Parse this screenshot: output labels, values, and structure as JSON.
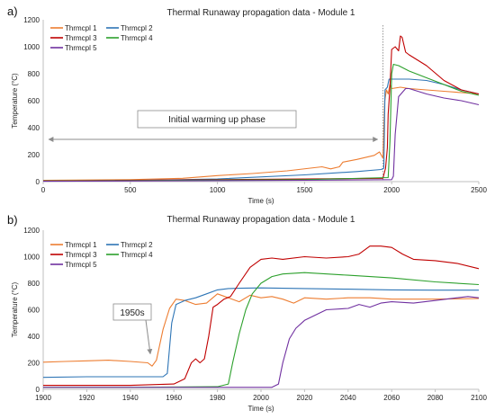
{
  "chart_data": [
    {
      "panel_label": "a)",
      "type": "line",
      "title": "Thermal Runaway propagation data  - Module 1",
      "xlabel": "Time (s)",
      "ylabel": "Temperature (°C)",
      "xlim": [
        0,
        2500
      ],
      "ylim": [
        0,
        1200
      ],
      "x_ticks": [
        0,
        500,
        1000,
        1500,
        2000,
        2500
      ],
      "y_ticks": [
        0,
        200,
        400,
        600,
        800,
        1000,
        1200
      ],
      "grid": false,
      "legend_position": "top-left",
      "annotation": {
        "text": "Initial warming up phase",
        "arrow_from_x": 0,
        "arrow_to_x": 1930,
        "arrow_y": 220
      },
      "vline_x": 1950,
      "series": [
        {
          "name": "Thrmcpl 1",
          "color": "#ed7d31",
          "points": [
            [
              0,
              10
            ],
            [
              500,
              15
            ],
            [
              800,
              25
            ],
            [
              1000,
              45
            ],
            [
              1200,
              60
            ],
            [
              1400,
              80
            ],
            [
              1600,
              110
            ],
            [
              1650,
              95
            ],
            [
              1700,
              110
            ],
            [
              1720,
              145
            ],
            [
              1800,
              165
            ],
            [
              1900,
              195
            ],
            [
              1930,
              220
            ],
            [
              1950,
              175
            ],
            [
              1960,
              600
            ],
            [
              1970,
              680
            ],
            [
              1980,
              650
            ],
            [
              1990,
              720
            ],
            [
              2000,
              690
            ],
            [
              2050,
              700
            ],
            [
              2100,
              690
            ],
            [
              2200,
              680
            ],
            [
              2300,
              670
            ],
            [
              2400,
              660
            ],
            [
              2500,
              650
            ]
          ]
        },
        {
          "name": "Thrmcpl 2",
          "color": "#2e75b6",
          "points": [
            [
              0,
              5
            ],
            [
              500,
              8
            ],
            [
              1000,
              20
            ],
            [
              1500,
              50
            ],
            [
              1800,
              75
            ],
            [
              1940,
              90
            ],
            [
              1955,
              100
            ],
            [
              1962,
              680
            ],
            [
              1975,
              700
            ],
            [
              1985,
              760
            ],
            [
              2000,
              760
            ],
            [
              2100,
              760
            ],
            [
              2200,
              750
            ],
            [
              2300,
              720
            ],
            [
              2400,
              680
            ],
            [
              2500,
              650
            ]
          ]
        },
        {
          "name": "Thrmcpl 3",
          "color": "#c00000",
          "points": [
            [
              0,
              5
            ],
            [
              1500,
              20
            ],
            [
              1950,
              25
            ],
            [
              1965,
              100
            ],
            [
              1975,
              250
            ],
            [
              1980,
              500
            ],
            [
              1990,
              700
            ],
            [
              2000,
              980
            ],
            [
              2020,
              1000
            ],
            [
              2040,
              970
            ],
            [
              2050,
              1080
            ],
            [
              2060,
              1070
            ],
            [
              2080,
              960
            ],
            [
              2100,
              940
            ],
            [
              2200,
              860
            ],
            [
              2300,
              750
            ],
            [
              2400,
              680
            ],
            [
              2500,
              650
            ]
          ]
        },
        {
          "name": "Thrmcpl 4",
          "color": "#2ca02c",
          "points": [
            [
              0,
              5
            ],
            [
              1500,
              15
            ],
            [
              1980,
              30
            ],
            [
              1990,
              300
            ],
            [
              2000,
              800
            ],
            [
              2010,
              870
            ],
            [
              2040,
              860
            ],
            [
              2100,
              820
            ],
            [
              2200,
              770
            ],
            [
              2300,
              720
            ],
            [
              2400,
              670
            ],
            [
              2500,
              640
            ]
          ]
        },
        {
          "name": "Thrmcpl 5",
          "color": "#7030a0",
          "points": [
            [
              0,
              3
            ],
            [
              1500,
              10
            ],
            [
              2000,
              15
            ],
            [
              2010,
              40
            ],
            [
              2020,
              350
            ],
            [
              2040,
              630
            ],
            [
              2060,
              660
            ],
            [
              2080,
              690
            ],
            [
              2100,
              690
            ],
            [
              2200,
              650
            ],
            [
              2300,
              620
            ],
            [
              2400,
              600
            ],
            [
              2500,
              570
            ]
          ]
        }
      ]
    },
    {
      "panel_label": "b)",
      "type": "line",
      "title": "Thermal Runaway propagation data  - Module 1",
      "xlabel": "Time (s)",
      "ylabel": "Temperature (°C)",
      "xlim": [
        1900,
        2100
      ],
      "ylim": [
        0,
        1200
      ],
      "x_ticks": [
        1900,
        1920,
        1940,
        1960,
        1980,
        2000,
        2020,
        2040,
        2060,
        2080,
        2100
      ],
      "y_ticks": [
        0,
        200,
        400,
        600,
        800,
        1000,
        1200
      ],
      "grid": false,
      "legend_position": "top-left",
      "annotation": {
        "text": "1950s",
        "arrow_to_x": 1950,
        "arrow_to_y": 240
      },
      "series": [
        {
          "name": "Thrmcpl 1",
          "color": "#ed7d31",
          "points": [
            [
              1900,
              205
            ],
            [
              1910,
              210
            ],
            [
              1920,
              215
            ],
            [
              1930,
              220
            ],
            [
              1940,
              210
            ],
            [
              1948,
              200
            ],
            [
              1950,
              175
            ],
            [
              1952,
              220
            ],
            [
              1955,
              450
            ],
            [
              1958,
              610
            ],
            [
              1961,
              680
            ],
            [
              1965,
              670
            ],
            [
              1970,
              640
            ],
            [
              1975,
              650
            ],
            [
              1980,
              720
            ],
            [
              1985,
              690
            ],
            [
              1990,
              660
            ],
            [
              1995,
              710
            ],
            [
              2000,
              690
            ],
            [
              2005,
              700
            ],
            [
              2010,
              680
            ],
            [
              2015,
              650
            ],
            [
              2020,
              690
            ],
            [
              2030,
              680
            ],
            [
              2040,
              690
            ],
            [
              2050,
              690
            ],
            [
              2060,
              680
            ],
            [
              2080,
              680
            ],
            [
              2100,
              685
            ]
          ]
        },
        {
          "name": "Thrmcpl 2",
          "color": "#2e75b6",
          "points": [
            [
              1900,
              90
            ],
            [
              1920,
              95
            ],
            [
              1940,
              95
            ],
            [
              1955,
              95
            ],
            [
              1957,
              120
            ],
            [
              1959,
              500
            ],
            [
              1961,
              640
            ],
            [
              1965,
              670
            ],
            [
              1970,
              690
            ],
            [
              1975,
              720
            ],
            [
              1980,
              750
            ],
            [
              1985,
              760
            ],
            [
              1990,
              762
            ],
            [
              2000,
              765
            ],
            [
              2020,
              760
            ],
            [
              2040,
              755
            ],
            [
              2060,
              750
            ],
            [
              2080,
              748
            ],
            [
              2100,
              748
            ]
          ]
        },
        {
          "name": "Thrmcpl 3",
          "color": "#c00000",
          "points": [
            [
              1900,
              30
            ],
            [
              1940,
              30
            ],
            [
              1960,
              40
            ],
            [
              1965,
              80
            ],
            [
              1968,
              200
            ],
            [
              1970,
              230
            ],
            [
              1972,
              200
            ],
            [
              1974,
              230
            ],
            [
              1976,
              400
            ],
            [
              1978,
              620
            ],
            [
              1980,
              640
            ],
            [
              1983,
              680
            ],
            [
              1986,
              700
            ],
            [
              1990,
              800
            ],
            [
              1995,
              920
            ],
            [
              2000,
              980
            ],
            [
              2005,
              990
            ],
            [
              2010,
              980
            ],
            [
              2020,
              1000
            ],
            [
              2030,
              990
            ],
            [
              2040,
              1000
            ],
            [
              2045,
              1020
            ],
            [
              2050,
              1080
            ],
            [
              2055,
              1080
            ],
            [
              2060,
              1070
            ],
            [
              2065,
              1020
            ],
            [
              2070,
              980
            ],
            [
              2080,
              970
            ],
            [
              2090,
              950
            ],
            [
              2100,
              910
            ]
          ]
        },
        {
          "name": "Thrmcpl 4",
          "color": "#2ca02c",
          "points": [
            [
              1900,
              15
            ],
            [
              1940,
              15
            ],
            [
              1980,
              20
            ],
            [
              1985,
              40
            ],
            [
              1987,
              200
            ],
            [
              1990,
              420
            ],
            [
              1993,
              600
            ],
            [
              1996,
              720
            ],
            [
              2000,
              800
            ],
            [
              2005,
              850
            ],
            [
              2010,
              870
            ],
            [
              2020,
              880
            ],
            [
              2040,
              860
            ],
            [
              2060,
              840
            ],
            [
              2080,
              810
            ],
            [
              2100,
              790
            ]
          ]
        },
        {
          "name": "Thrmcpl 5",
          "color": "#7030a0",
          "points": [
            [
              1900,
              15
            ],
            [
              1980,
              15
            ],
            [
              2005,
              15
            ],
            [
              2008,
              40
            ],
            [
              2010,
              200
            ],
            [
              2013,
              380
            ],
            [
              2016,
              460
            ],
            [
              2020,
              520
            ],
            [
              2025,
              560
            ],
            [
              2030,
              600
            ],
            [
              2040,
              610
            ],
            [
              2045,
              640
            ],
            [
              2050,
              620
            ],
            [
              2055,
              650
            ],
            [
              2060,
              660
            ],
            [
              2070,
              650
            ],
            [
              2080,
              670
            ],
            [
              2090,
              690
            ],
            [
              2095,
              700
            ],
            [
              2100,
              690
            ]
          ]
        }
      ]
    }
  ]
}
